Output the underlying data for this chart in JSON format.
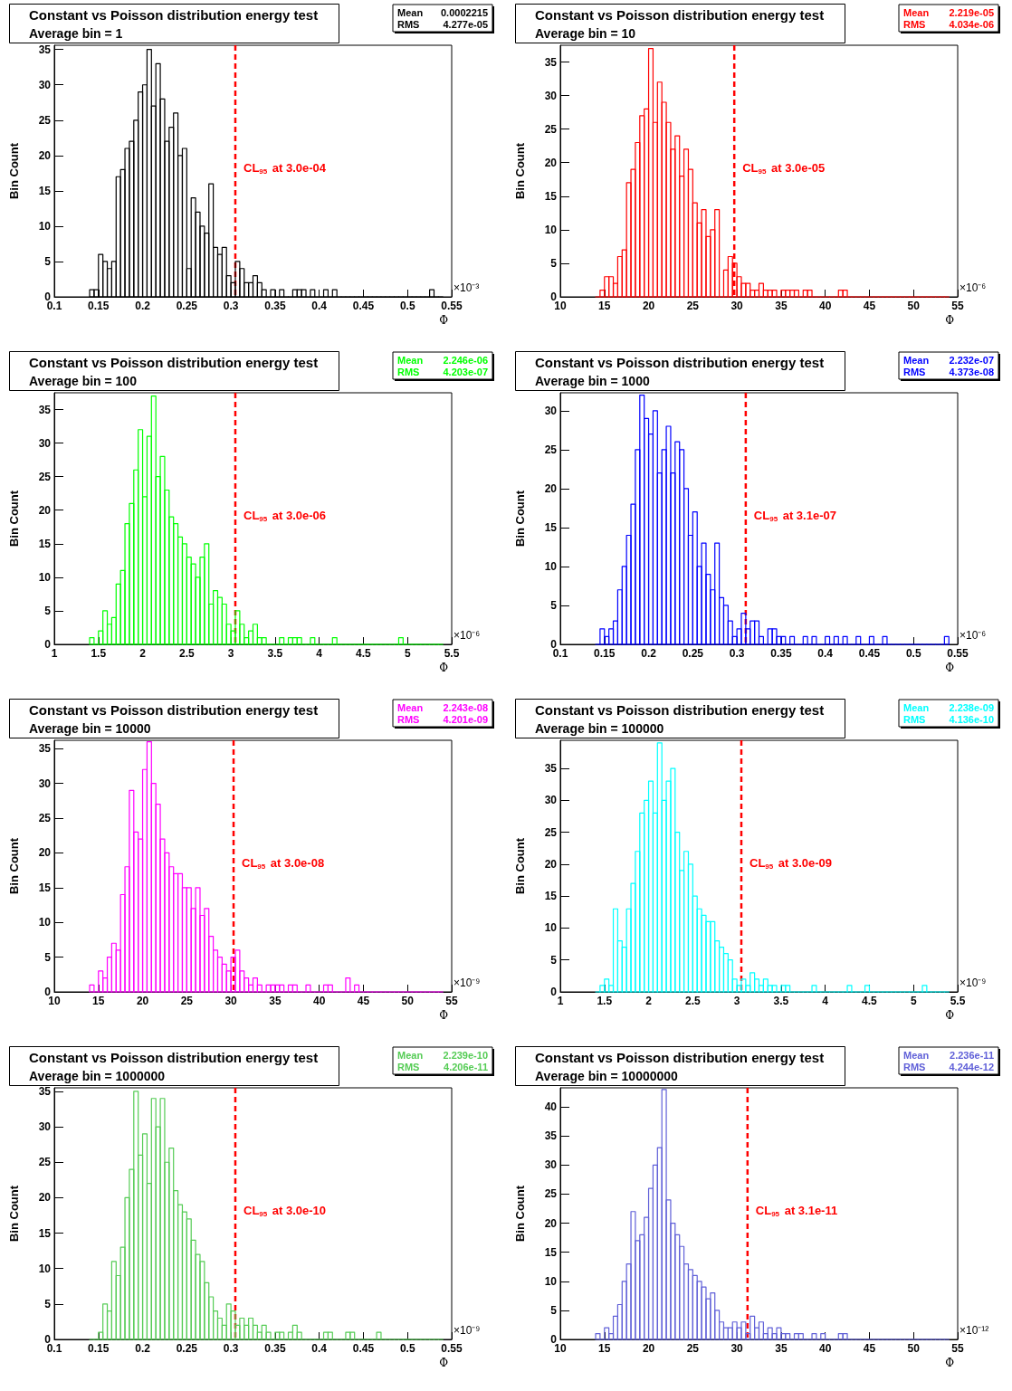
{
  "chart_data": [
    {
      "type": "histogram",
      "title": "Constant vs Poisson distribution energy test",
      "subtitle": "Average bin = 1",
      "xlabel": "Φ",
      "ylabel": "Bin Count",
      "annotations": [
        "Mean 0.0002215",
        "RMS 4.277e-05",
        "×10⁻³"
      ],
      "xlim": [
        0.1,
        0.55
      ],
      "xticks": [
        0.1,
        0.15,
        0.2,
        0.25,
        0.3,
        0.35,
        0.4,
        0.45,
        0.5,
        0.55
      ],
      "ylim": [
        0,
        35.6
      ],
      "yticks": [
        0,
        5,
        10,
        15,
        20,
        25,
        30,
        35
      ],
      "grid": false,
      "bins": [
        0.14,
        0.145,
        0.15,
        0.155,
        0.16,
        0.165,
        0.17,
        0.175,
        0.18,
        0.185,
        0.19,
        0.195,
        0.2,
        0.205,
        0.21,
        0.215,
        0.22,
        0.225,
        0.23,
        0.235,
        0.24,
        0.245,
        0.25,
        0.255,
        0.26,
        0.265,
        0.27,
        0.275,
        0.28,
        0.285,
        0.29,
        0.295,
        0.3,
        0.305,
        0.31,
        0.315,
        0.32,
        0.325,
        0.33,
        0.335,
        0.34,
        0.345,
        0.35,
        0.355,
        0.36,
        0.365,
        0.37,
        0.375,
        0.38,
        0.385,
        0.39,
        0.395,
        0.4,
        0.405,
        0.41,
        0.415,
        0.42,
        0.425,
        0.43,
        0.435,
        0.44,
        0.445,
        0.45,
        0.455,
        0.46,
        0.465,
        0.47,
        0.475,
        0.48,
        0.485,
        0.49,
        0.495,
        0.5,
        0.505,
        0.51,
        0.515,
        0.52,
        0.525,
        0.53,
        0.535,
        0.54
      ],
      "series": [
        {
          "color": "#000000",
          "values": [
            1,
            1,
            6,
            5,
            4,
            5,
            17,
            18,
            21,
            22,
            25,
            29,
            30,
            35,
            27,
            33,
            28,
            22,
            24,
            26,
            20,
            21,
            4,
            14,
            12,
            10,
            9,
            16,
            7,
            6,
            7,
            3,
            2,
            5,
            4,
            2,
            2,
            3,
            2,
            1,
            0,
            1,
            0,
            1,
            0,
            0,
            1,
            1,
            1,
            0,
            1,
            0,
            0,
            1,
            0,
            1,
            0,
            0,
            0,
            0,
            0,
            0,
            0,
            0,
            0,
            0,
            0,
            0,
            0,
            0,
            0,
            0,
            0,
            0,
            0,
            0,
            0,
            1,
            0,
            0
          ]
        }
      ],
      "ref_lines": [
        {
          "axis": "x",
          "value": 0.305,
          "label": "CL$_{95}$ at 3.0e-04",
          "color": "#ff0000",
          "line_style": "dashed"
        }
      ]
    },
    {
      "type": "histogram",
      "title": "Constant vs Poisson distribution energy test",
      "subtitle": "Average bin = 10",
      "xlabel": "Φ",
      "ylabel": "Bin Count",
      "annotations": [
        "Mean 2.219e-05",
        "RMS 4.034e-06",
        "×10⁻⁶"
      ],
      "xlim": [
        10,
        55
      ],
      "xticks": [
        10,
        15,
        20,
        25,
        30,
        35,
        40,
        45,
        50,
        55
      ],
      "ylim": [
        0,
        37.5
      ],
      "yticks": [
        0,
        5,
        10,
        15,
        20,
        25,
        30,
        35
      ],
      "grid": false,
      "bins": [
        14,
        14.5,
        15,
        15.5,
        16,
        16.5,
        17,
        17.5,
        18,
        18.5,
        19,
        19.5,
        20,
        20.5,
        21,
        21.5,
        22,
        22.5,
        23,
        23.5,
        24,
        24.5,
        25,
        25.5,
        26,
        26.5,
        27,
        27.5,
        28,
        28.5,
        29,
        29.5,
        30,
        30.5,
        31,
        31.5,
        32,
        32.5,
        33,
        33.5,
        34,
        34.5,
        35,
        35.5,
        36,
        36.5,
        37,
        37.5,
        38,
        38.5,
        39,
        39.5,
        40,
        40.5,
        41,
        41.5,
        42,
        42.5,
        43,
        43.5,
        44,
        44.5,
        45,
        45.5,
        46,
        46.5,
        47,
        47.5,
        48,
        48.5,
        49,
        49.5,
        50,
        50.5,
        51,
        51.5,
        52,
        52.5,
        53,
        53.5,
        54
      ],
      "series": [
        {
          "color": "#ff0000",
          "values": [
            0,
            1,
            3,
            3,
            2,
            6,
            7,
            17,
            19,
            23,
            27,
            28,
            37,
            26,
            32,
            29,
            26,
            22,
            24,
            18,
            22,
            19,
            14,
            11,
            13,
            9,
            10,
            13,
            0,
            4,
            6,
            5,
            3,
            2,
            2,
            1,
            1,
            2,
            1,
            1,
            1,
            0,
            1,
            1,
            1,
            1,
            0,
            1,
            1,
            0,
            0,
            0,
            0,
            0,
            0,
            1,
            1,
            0,
            0,
            0,
            0,
            0,
            0,
            0,
            0,
            0,
            0,
            0,
            0,
            0,
            0,
            0,
            0,
            0,
            0,
            0,
            0,
            0,
            0,
            0
          ]
        }
      ],
      "ref_lines": [
        {
          "axis": "x",
          "value": 29.7,
          "label": "CL$_{95}$ at 3.0e-05",
          "color": "#ff0000",
          "line_style": "dashed"
        }
      ]
    },
    {
      "type": "histogram",
      "title": "Constant vs Poisson distribution energy test",
      "subtitle": "Average bin = 100",
      "xlabel": "Φ",
      "ylabel": "Bin Count",
      "annotations": [
        "Mean 2.246e-06",
        "RMS 4.203e-07",
        "×10⁻⁶"
      ],
      "xlim": [
        1,
        5.5
      ],
      "xticks": [
        1,
        1.5,
        2,
        2.5,
        3,
        3.5,
        4,
        4.5,
        5,
        5.5
      ],
      "ylim": [
        0,
        37.5
      ],
      "yticks": [
        0,
        5,
        10,
        15,
        20,
        25,
        30,
        35
      ],
      "grid": false,
      "bins": [
        1.4,
        1.45,
        1.5,
        1.55,
        1.6,
        1.65,
        1.7,
        1.75,
        1.8,
        1.85,
        1.9,
        1.95,
        2,
        2.05,
        2.1,
        2.15,
        2.2,
        2.25,
        2.3,
        2.35,
        2.4,
        2.45,
        2.5,
        2.55,
        2.6,
        2.65,
        2.7,
        2.75,
        2.8,
        2.85,
        2.9,
        2.95,
        3,
        3.05,
        3.1,
        3.15,
        3.2,
        3.25,
        3.3,
        3.35,
        3.4,
        3.45,
        3.5,
        3.55,
        3.6,
        3.65,
        3.7,
        3.75,
        3.8,
        3.85,
        3.9,
        3.95,
        4,
        4.05,
        4.1,
        4.15,
        4.2,
        4.25,
        4.3,
        4.35,
        4.4,
        4.45,
        4.5,
        4.55,
        4.6,
        4.65,
        4.7,
        4.75,
        4.8,
        4.85,
        4.9,
        4.95,
        5,
        5.05,
        5.1,
        5.15,
        5.2,
        5.25,
        5.3,
        5.35,
        5.4
      ],
      "series": [
        {
          "color": "#00ff00",
          "values": [
            1,
            0,
            2,
            5,
            3,
            4,
            9,
            11,
            18,
            21,
            26,
            32,
            22,
            31,
            37,
            25,
            28,
            23,
            19,
            18,
            16,
            15,
            13,
            12,
            10,
            13,
            15,
            6,
            8,
            7,
            6,
            3,
            2,
            5,
            3,
            1,
            2,
            3,
            1,
            1,
            0,
            0,
            0,
            1,
            0,
            1,
            1,
            1,
            0,
            0,
            1,
            0,
            0,
            0,
            0,
            1,
            0,
            0,
            0,
            0,
            0,
            0,
            0,
            0,
            0,
            0,
            0,
            0,
            0,
            0,
            1,
            0,
            0,
            0,
            0,
            0,
            0,
            0,
            0,
            0
          ]
        }
      ],
      "ref_lines": [
        {
          "axis": "x",
          "value": 3.05,
          "label": "CL$_{95}$ at 3.0e-06",
          "color": "#ff0000",
          "line_style": "dashed"
        }
      ]
    },
    {
      "type": "histogram",
      "title": "Constant vs Poisson distribution energy test",
      "subtitle": "Average bin = 1000",
      "xlabel": "Φ",
      "ylabel": "Bin Count",
      "annotations": [
        "Mean 2.232e-07",
        "RMS 4.373e-08",
        "×10⁻⁶"
      ],
      "xlim": [
        0.1,
        0.55
      ],
      "xticks": [
        0.1,
        0.15,
        0.2,
        0.25,
        0.3,
        0.35,
        0.4,
        0.45,
        0.5,
        0.55
      ],
      "ylim": [
        0,
        32.3
      ],
      "yticks": [
        0,
        5,
        10,
        15,
        20,
        25,
        30
      ],
      "grid": false,
      "bins": [
        0.14,
        0.145,
        0.15,
        0.155,
        0.16,
        0.165,
        0.17,
        0.175,
        0.18,
        0.185,
        0.19,
        0.195,
        0.2,
        0.205,
        0.21,
        0.215,
        0.22,
        0.225,
        0.23,
        0.235,
        0.24,
        0.245,
        0.25,
        0.255,
        0.26,
        0.265,
        0.27,
        0.275,
        0.28,
        0.285,
        0.29,
        0.295,
        0.3,
        0.305,
        0.31,
        0.315,
        0.32,
        0.325,
        0.33,
        0.335,
        0.34,
        0.345,
        0.35,
        0.355,
        0.36,
        0.365,
        0.37,
        0.375,
        0.38,
        0.385,
        0.39,
        0.395,
        0.4,
        0.405,
        0.41,
        0.415,
        0.42,
        0.425,
        0.43,
        0.435,
        0.44,
        0.445,
        0.45,
        0.455,
        0.46,
        0.465,
        0.47,
        0.475,
        0.48,
        0.485,
        0.49,
        0.495,
        0.5,
        0.505,
        0.51,
        0.515,
        0.52,
        0.525,
        0.53,
        0.535,
        0.54
      ],
      "series": [
        {
          "color": "#0000ff",
          "values": [
            0,
            2,
            1,
            2,
            3,
            7,
            10,
            14,
            18,
            25,
            32,
            29,
            27,
            30,
            22,
            25,
            28,
            22,
            26,
            25,
            20,
            14,
            17,
            10,
            13,
            9,
            7,
            13,
            6,
            5,
            3,
            1,
            2,
            4,
            2,
            3,
            3,
            1,
            0,
            2,
            2,
            1,
            1,
            0,
            1,
            0,
            0,
            1,
            0,
            1,
            0,
            0,
            1,
            0,
            1,
            0,
            1,
            0,
            0,
            1,
            0,
            0,
            1,
            0,
            0,
            1,
            0,
            0,
            0,
            0,
            0,
            0,
            0,
            0,
            0,
            0,
            0,
            0,
            0,
            1
          ]
        }
      ],
      "ref_lines": [
        {
          "axis": "x",
          "value": 0.31,
          "label": "CL$_{95}$ at 3.1e-07",
          "color": "#ff0000",
          "line_style": "dashed"
        }
      ]
    },
    {
      "type": "histogram",
      "title": "Constant vs Poisson distribution energy test",
      "subtitle": "Average bin = 10000",
      "xlabel": "Φ",
      "ylabel": "Bin Count",
      "annotations": [
        "Mean 2.243e-08",
        "RMS 4.201e-09",
        "×10⁻⁹"
      ],
      "xlim": [
        10,
        55
      ],
      "xticks": [
        10,
        15,
        20,
        25,
        30,
        35,
        40,
        45,
        50,
        55
      ],
      "ylim": [
        0,
        36.2
      ],
      "yticks": [
        0,
        5,
        10,
        15,
        20,
        25,
        30,
        35
      ],
      "grid": false,
      "bins": [
        14,
        14.5,
        15,
        15.5,
        16,
        16.5,
        17,
        17.5,
        18,
        18.5,
        19,
        19.5,
        20,
        20.5,
        21,
        21.5,
        22,
        22.5,
        23,
        23.5,
        24,
        24.5,
        25,
        25.5,
        26,
        26.5,
        27,
        27.5,
        28,
        28.5,
        29,
        29.5,
        30,
        30.5,
        31,
        31.5,
        32,
        32.5,
        33,
        33.5,
        34,
        34.5,
        35,
        35.5,
        36,
        36.5,
        37,
        37.5,
        38,
        38.5,
        39,
        39.5,
        40,
        40.5,
        41,
        41.5,
        42,
        42.5,
        43,
        43.5,
        44,
        44.5,
        45,
        45.5,
        46,
        46.5,
        47,
        47.5,
        48,
        48.5,
        49,
        49.5,
        50,
        50.5,
        51,
        51.5,
        52,
        52.5,
        53,
        53.5,
        54
      ],
      "series": [
        {
          "color": "#ff00ff",
          "values": [
            1,
            0,
            3,
            2,
            5,
            7,
            6,
            14,
            18,
            29,
            23,
            22,
            32,
            36,
            30,
            27,
            22,
            20,
            18,
            17,
            17,
            15,
            15,
            12,
            15,
            11,
            12,
            8,
            6,
            5,
            4,
            3,
            5,
            6,
            3,
            2,
            1,
            2,
            1,
            0,
            1,
            1,
            1,
            1,
            0,
            1,
            1,
            0,
            0,
            1,
            0,
            0,
            0,
            1,
            1,
            0,
            0,
            0,
            2,
            0,
            1,
            0,
            0,
            0,
            0,
            0,
            0,
            0,
            0,
            0,
            0,
            0,
            0,
            0,
            0,
            0,
            0,
            0,
            0,
            0
          ]
        }
      ],
      "ref_lines": [
        {
          "axis": "x",
          "value": 30.3,
          "label": "CL$_{95}$ at 3.0e-08",
          "color": "#ff0000",
          "line_style": "dashed"
        }
      ]
    },
    {
      "type": "histogram",
      "title": "Constant vs Poisson distribution energy test",
      "subtitle": "Average bin = 100000",
      "xlabel": "Φ",
      "ylabel": "Bin Count",
      "annotations": [
        "Mean 2.238e-09",
        "RMS 4.136e-10",
        "×10⁻⁹"
      ],
      "xlim": [
        1,
        5.5
      ],
      "xticks": [
        1,
        1.5,
        2,
        2.5,
        3,
        3.5,
        4,
        4.5,
        5,
        5.5
      ],
      "ylim": [
        0,
        39.4
      ],
      "yticks": [
        0,
        5,
        10,
        15,
        20,
        25,
        30,
        35
      ],
      "grid": false,
      "bins": [
        1.4,
        1.45,
        1.5,
        1.55,
        1.6,
        1.65,
        1.7,
        1.75,
        1.8,
        1.85,
        1.9,
        1.95,
        2,
        2.05,
        2.1,
        2.15,
        2.2,
        2.25,
        2.3,
        2.35,
        2.4,
        2.45,
        2.5,
        2.55,
        2.6,
        2.65,
        2.7,
        2.75,
        2.8,
        2.85,
        2.9,
        2.95,
        3,
        3.05,
        3.1,
        3.15,
        3.2,
        3.25,
        3.3,
        3.35,
        3.4,
        3.45,
        3.5,
        3.55,
        3.6,
        3.65,
        3.7,
        3.75,
        3.8,
        3.85,
        3.9,
        3.95,
        4,
        4.05,
        4.1,
        4.15,
        4.2,
        4.25,
        4.3,
        4.35,
        4.4,
        4.45,
        4.5,
        4.55,
        4.6,
        4.65,
        4.7,
        4.75,
        4.8,
        4.85,
        4.9,
        4.95,
        5,
        5.05,
        5.1,
        5.15,
        5.2,
        5.25,
        5.3,
        5.35,
        5.4
      ],
      "series": [
        {
          "color": "#00ffff",
          "values": [
            0,
            1,
            2,
            1,
            13,
            8,
            7,
            13,
            17,
            22,
            28,
            30,
            33,
            28,
            39,
            30,
            33,
            35,
            25,
            19,
            22,
            20,
            15,
            13,
            12,
            11,
            11,
            8,
            7,
            6,
            5,
            2,
            1,
            2,
            1,
            3,
            2,
            1,
            2,
            1,
            1,
            0,
            1,
            1,
            0,
            0,
            0,
            0,
            0,
            1,
            0,
            0,
            0,
            0,
            0,
            0,
            0,
            1,
            0,
            0,
            0,
            1,
            0,
            0,
            0,
            0,
            0,
            0,
            0,
            0,
            0,
            0,
            0,
            0,
            1,
            0,
            0,
            0,
            0,
            0
          ]
        }
      ],
      "ref_lines": [
        {
          "axis": "x",
          "value": 3.05,
          "label": "CL$_{95}$ at 3.0e-09",
          "color": "#ff0000",
          "line_style": "dashed"
        }
      ]
    },
    {
      "type": "histogram",
      "title": "Constant vs Poisson distribution energy test",
      "subtitle": "Average bin = 1000000",
      "xlabel": "Φ",
      "ylabel": "Bin Count",
      "annotations": [
        "Mean 2.239e-10",
        "RMS 4.206e-11",
        "×10⁻⁹"
      ],
      "xlim": [
        0.1,
        0.55
      ],
      "xticks": [
        0.1,
        0.15,
        0.2,
        0.25,
        0.3,
        0.35,
        0.4,
        0.45,
        0.5,
        0.55
      ],
      "ylim": [
        0,
        35.5
      ],
      "yticks": [
        0,
        5,
        10,
        15,
        20,
        25,
        30,
        35
      ],
      "grid": false,
      "bins": [
        0.14,
        0.145,
        0.15,
        0.155,
        0.16,
        0.165,
        0.17,
        0.175,
        0.18,
        0.185,
        0.19,
        0.195,
        0.2,
        0.205,
        0.21,
        0.215,
        0.22,
        0.225,
        0.23,
        0.235,
        0.24,
        0.245,
        0.25,
        0.255,
        0.26,
        0.265,
        0.27,
        0.275,
        0.28,
        0.285,
        0.29,
        0.295,
        0.3,
        0.305,
        0.31,
        0.315,
        0.32,
        0.325,
        0.33,
        0.335,
        0.34,
        0.345,
        0.35,
        0.355,
        0.36,
        0.365,
        0.37,
        0.375,
        0.38,
        0.385,
        0.39,
        0.395,
        0.4,
        0.405,
        0.41,
        0.415,
        0.42,
        0.425,
        0.43,
        0.435,
        0.44,
        0.445,
        0.45,
        0.455,
        0.46,
        0.465,
        0.47,
        0.475,
        0.48,
        0.485,
        0.49,
        0.495,
        0.5,
        0.505,
        0.51,
        0.515,
        0.52,
        0.525,
        0.53,
        0.535,
        0.54
      ],
      "series": [
        {
          "color": "#55cc55",
          "values": [
            0,
            0,
            1,
            5,
            4,
            11,
            9,
            13,
            20,
            24,
            35,
            26,
            29,
            22,
            34,
            30,
            34,
            25,
            27,
            21,
            19,
            18,
            17,
            14,
            12,
            11,
            8,
            6,
            4,
            3,
            2,
            5,
            4,
            2,
            3,
            2,
            3,
            2,
            1,
            2,
            1,
            0,
            1,
            1,
            0,
            1,
            2,
            1,
            0,
            0,
            0,
            0,
            0,
            1,
            1,
            0,
            0,
            0,
            1,
            1,
            0,
            0,
            0,
            0,
            0,
            1,
            0,
            0,
            0,
            0,
            0,
            0,
            0,
            0,
            0,
            0,
            0,
            0,
            0,
            0
          ]
        }
      ],
      "ref_lines": [
        {
          "axis": "x",
          "value": 0.305,
          "label": "CL$_{95}$ at 3.0e-10",
          "color": "#ff0000",
          "line_style": "dashed"
        }
      ]
    },
    {
      "type": "histogram",
      "title": "Constant vs Poisson distribution energy test",
      "subtitle": "Average bin = 10000000",
      "xlabel": "Φ",
      "ylabel": "Bin Count",
      "annotations": [
        "Mean 2.236e-11",
        "RMS 4.244e-12",
        "×10⁻¹²"
      ],
      "xlim": [
        10,
        55
      ],
      "xticks": [
        10,
        15,
        20,
        25,
        30,
        35,
        40,
        45,
        50,
        55
      ],
      "ylim": [
        0,
        43.3
      ],
      "yticks": [
        0,
        5,
        10,
        15,
        20,
        25,
        30,
        35,
        40
      ],
      "grid": false,
      "bins": [
        14,
        14.5,
        15,
        15.5,
        16,
        16.5,
        17,
        17.5,
        18,
        18.5,
        19,
        19.5,
        20,
        20.5,
        21,
        21.5,
        22,
        22.5,
        23,
        23.5,
        24,
        24.5,
        25,
        25.5,
        26,
        26.5,
        27,
        27.5,
        28,
        28.5,
        29,
        29.5,
        30,
        30.5,
        31,
        31.5,
        32,
        32.5,
        33,
        33.5,
        34,
        34.5,
        35,
        35.5,
        36,
        36.5,
        37,
        37.5,
        38,
        38.5,
        39,
        39.5,
        40,
        40.5,
        41,
        41.5,
        42,
        42.5,
        43,
        43.5,
        44,
        44.5,
        45,
        45.5,
        46,
        46.5,
        47,
        47.5,
        48,
        48.5,
        49,
        49.5,
        50,
        50.5,
        51,
        51.5,
        52,
        52.5,
        53,
        53.5,
        54
      ],
      "series": [
        {
          "color": "#6060d8",
          "values": [
            1,
            0,
            2,
            1,
            4,
            6,
            10,
            13,
            22,
            17,
            18,
            21,
            26,
            30,
            33,
            43,
            24,
            20,
            18,
            16,
            13,
            12,
            11,
            10,
            9,
            7,
            8,
            5,
            3,
            2,
            2,
            3,
            2,
            3,
            1,
            4,
            2,
            3,
            1,
            2,
            1,
            2,
            1,
            1,
            0,
            1,
            1,
            0,
            0,
            1,
            0,
            1,
            0,
            0,
            0,
            1,
            1,
            0,
            0,
            0,
            0,
            0,
            0,
            0,
            0,
            0,
            0,
            0,
            0,
            0,
            0,
            0,
            0,
            0,
            0,
            0,
            0,
            0,
            0,
            0
          ]
        }
      ],
      "ref_lines": [
        {
          "axis": "x",
          "value": 31.2,
          "label": "CL$_{95}$ at 3.1e-11",
          "color": "#ff0000",
          "line_style": "dashed"
        }
      ]
    }
  ]
}
